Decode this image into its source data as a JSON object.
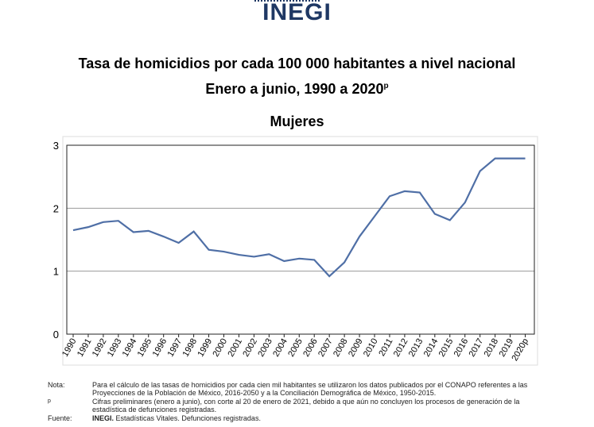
{
  "header": {
    "logo": "INEGI"
  },
  "chart_data": {
    "type": "line",
    "title": "Tasa de homicidios por cada 100 000 habitantes a nivel nacional",
    "subtitle": "Enero a junio, 1990 a 2020",
    "subtitle_sup": "p",
    "series_title": "Mujeres",
    "xlabel": "",
    "ylabel": "",
    "ylim": [
      0,
      3
    ],
    "yticks": [
      "0",
      "1",
      "2",
      "3"
    ],
    "grid": true,
    "color": "#4f6fa6",
    "categories": [
      "1990",
      "1991",
      "1992",
      "1993",
      "1994",
      "1995",
      "1996",
      "1997",
      "1998",
      "1999",
      "2000",
      "2001",
      "2002",
      "2003",
      "2004",
      "2005",
      "2006",
      "2007",
      "2008",
      "2009",
      "2010",
      "2011",
      "2012",
      "2013",
      "2014",
      "2015",
      "2016",
      "2017",
      "2018",
      "2019",
      "2020p"
    ],
    "values": [
      1.65,
      1.7,
      1.78,
      1.8,
      1.62,
      1.64,
      1.55,
      1.45,
      1.63,
      1.34,
      1.31,
      1.26,
      1.23,
      1.27,
      1.16,
      1.2,
      1.18,
      0.92,
      1.14,
      1.55,
      1.87,
      2.19,
      2.27,
      2.25,
      1.91,
      1.81,
      2.09,
      2.59,
      2.79,
      2.79,
      2.79
    ]
  },
  "notes": [
    {
      "label": "Nota:",
      "text": "Para el cálculo de las tasas de homicidios por cada cien mil habitantes se utilizaron los datos publicados por el CONAPO referentes a las Proyecciones de la Población de México, 2016-2050 y a la Conciliación Demográfica de México, 1950-2015."
    },
    {
      "label": "p",
      "text": "Cifras preliminares (enero a junio), con corte al 20 de enero de 2021, debido a que aún no concluyen los procesos de generación de la estadística de defunciones registradas."
    },
    {
      "label": "Fuente:",
      "bold": "INEGI.",
      "text": " Estadísticas Vitales. Defunciones registradas."
    }
  ]
}
